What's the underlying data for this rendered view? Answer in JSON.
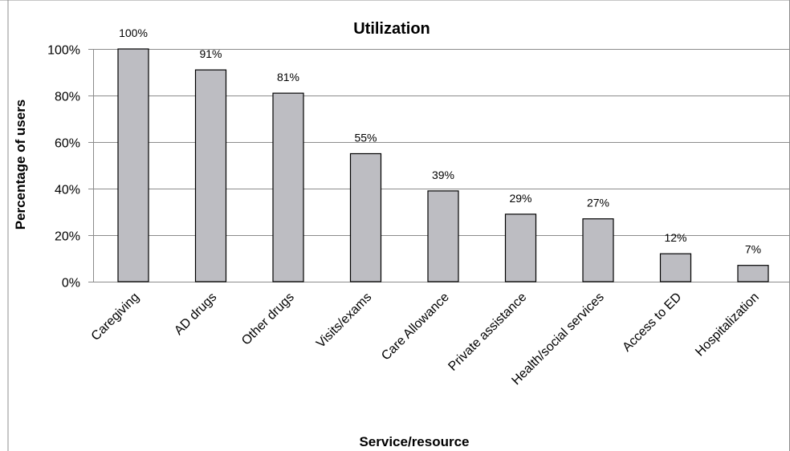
{
  "chart_data": {
    "type": "bar",
    "title": "Utilization",
    "xlabel": "Service/resource",
    "ylabel": "Percentage of users",
    "categories": [
      "Caregiving",
      "AD drugs",
      "Other drugs",
      "Visits/exams",
      "Care Allowance",
      "Private assistance",
      "Health/social services",
      "Access to ED",
      "Hospitalization"
    ],
    "values": [
      100,
      91,
      81,
      55,
      39,
      29,
      27,
      12,
      7
    ],
    "data_labels": [
      "100%",
      "91%",
      "81%",
      "55%",
      "39%",
      "29%",
      "27%",
      "12%",
      "7%"
    ],
    "y_ticks": [
      "0%",
      "20%",
      "40%",
      "60%",
      "80%",
      "100%"
    ],
    "y_tick_values": [
      0,
      20,
      40,
      60,
      80,
      100
    ],
    "ylim": [
      0,
      100
    ],
    "grid": true,
    "legend": "none",
    "bar_color": "#bdbdc2",
    "bar_edge_color": "#000000"
  }
}
